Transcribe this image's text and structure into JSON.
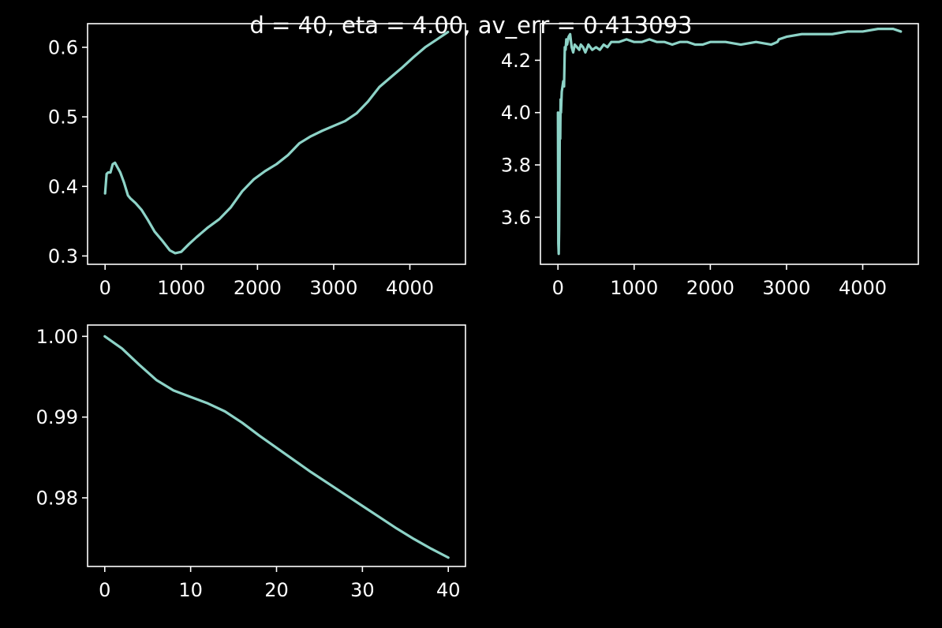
{
  "figure": {
    "suptitle": "d = 40, eta = 4.00, av_err = 0.413093",
    "background": "#000000",
    "foreground": "#ffffff",
    "line_color": "#8dd3c7"
  },
  "chart_data": [
    {
      "type": "line",
      "title": "",
      "xlabel": "",
      "ylabel": "",
      "xlim": [
        -230,
        4730
      ],
      "ylim": [
        0.288,
        0.634
      ],
      "xticks": [
        0,
        1000,
        2000,
        3000,
        4000
      ],
      "xtick_labels": [
        "0",
        "1000",
        "2000",
        "3000",
        "4000"
      ],
      "yticks": [
        0.3,
        0.4,
        0.5,
        0.6
      ],
      "ytick_labels": [
        "0.3",
        "0.4",
        "0.5",
        "0.6"
      ],
      "grid": false,
      "series": [
        {
          "x": [
            0,
            20,
            40,
            70,
            100,
            130,
            160,
            200,
            250,
            300,
            330,
            400,
            480,
            560,
            650,
            750,
            850,
            920,
            1000,
            1100,
            1200,
            1350,
            1500,
            1650,
            1800,
            1950,
            2100,
            2250,
            2400,
            2550,
            2700,
            2850,
            3000,
            3150,
            3300,
            3450,
            3600,
            3750,
            3900,
            4050,
            4200,
            4350,
            4500
          ],
          "y": [
            0.39,
            0.418,
            0.42,
            0.42,
            0.432,
            0.434,
            0.428,
            0.42,
            0.405,
            0.387,
            0.383,
            0.376,
            0.366,
            0.352,
            0.335,
            0.322,
            0.308,
            0.304,
            0.306,
            0.317,
            0.327,
            0.341,
            0.353,
            0.37,
            0.393,
            0.41,
            0.422,
            0.432,
            0.445,
            0.462,
            0.472,
            0.48,
            0.487,
            0.494,
            0.505,
            0.522,
            0.543,
            0.557,
            0.571,
            0.586,
            0.6,
            0.611,
            0.622
          ]
        }
      ]
    },
    {
      "type": "line",
      "title": "",
      "xlabel": "",
      "ylabel": "",
      "xlim": [
        -230,
        4730
      ],
      "ylim": [
        3.42,
        4.34
      ],
      "xticks": [
        0,
        1000,
        2000,
        3000,
        4000
      ],
      "xtick_labels": [
        "0",
        "1000",
        "2000",
        "3000",
        "4000"
      ],
      "yticks": [
        3.6,
        3.8,
        4.0,
        4.2
      ],
      "ytick_labels": [
        "3.6",
        "3.8",
        "4.0",
        "4.2"
      ],
      "grid": false,
      "series": [
        {
          "x": [
            0,
            5,
            10,
            15,
            20,
            25,
            30,
            35,
            40,
            50,
            60,
            70,
            80,
            90,
            100,
            110,
            120,
            140,
            160,
            180,
            200,
            220,
            250,
            280,
            300,
            330,
            360,
            400,
            450,
            500,
            550,
            600,
            650,
            700,
            800,
            900,
            1000,
            1100,
            1200,
            1300,
            1400,
            1500,
            1600,
            1700,
            1800,
            1900,
            2000,
            2200,
            2400,
            2600,
            2800,
            2880,
            2900,
            3000,
            3200,
            3400,
            3600,
            3800,
            4000,
            4200,
            4400,
            4500
          ],
          "y": [
            4.0,
            3.5,
            3.46,
            3.55,
            3.75,
            4.0,
            3.9,
            4.05,
            4.0,
            4.08,
            4.1,
            4.12,
            4.1,
            4.25,
            4.24,
            4.28,
            4.26,
            4.29,
            4.3,
            4.25,
            4.23,
            4.26,
            4.25,
            4.24,
            4.26,
            4.25,
            4.23,
            4.26,
            4.24,
            4.25,
            4.24,
            4.26,
            4.25,
            4.27,
            4.27,
            4.28,
            4.27,
            4.27,
            4.28,
            4.27,
            4.27,
            4.26,
            4.27,
            4.27,
            4.26,
            4.26,
            4.27,
            4.27,
            4.26,
            4.27,
            4.26,
            4.27,
            4.28,
            4.29,
            4.3,
            4.3,
            4.3,
            4.31,
            4.31,
            4.32,
            4.32,
            4.31
          ]
        }
      ]
    },
    {
      "type": "line",
      "title": "",
      "xlabel": "",
      "ylabel": "",
      "xlim": [
        -2,
        42
      ],
      "ylim": [
        0.9715,
        1.0014
      ],
      "xticks": [
        0,
        10,
        20,
        30,
        40
      ],
      "xtick_labels": [
        "0",
        "10",
        "20",
        "30",
        "40"
      ],
      "yticks": [
        0.98,
        0.99,
        1.0
      ],
      "ytick_labels": [
        "0.98",
        "0.99",
        "1.00"
      ],
      "grid": false,
      "series": [
        {
          "x": [
            0,
            2,
            4,
            6,
            8,
            10,
            12,
            14,
            16,
            18,
            20,
            22,
            24,
            26,
            28,
            30,
            32,
            34,
            36,
            38,
            40
          ],
          "y": [
            1.0,
            0.9985,
            0.9965,
            0.9946,
            0.9933,
            0.9925,
            0.9917,
            0.9907,
            0.9893,
            0.9877,
            0.9862,
            0.9847,
            0.9832,
            0.9818,
            0.9804,
            0.979,
            0.9776,
            0.9762,
            0.9749,
            0.9737,
            0.9726
          ]
        }
      ]
    }
  ]
}
